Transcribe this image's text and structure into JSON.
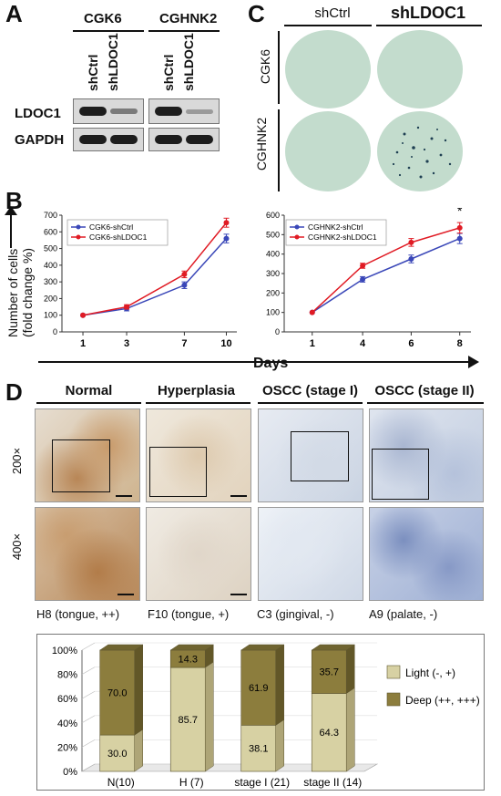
{
  "panelA": {
    "letter": "A",
    "groups": [
      "CGK6",
      "CGHNK2"
    ],
    "lanes": [
      "shCtrl",
      "shLDOC1",
      "shCtrl",
      "shLDOC1"
    ],
    "proteins": [
      "LDOC1",
      "GAPDH"
    ]
  },
  "panelC": {
    "letter": "C",
    "cols": [
      "shCtrl",
      "shLDOC1"
    ],
    "rows": [
      "CGK6",
      "CGHNK2"
    ]
  },
  "panelB": {
    "letter": "B",
    "y_axis_label_line1": "Number of cells",
    "y_axis_label_line2": "(fold change %)",
    "x_axis_label": "Days"
  },
  "panelD": {
    "letter": "D",
    "column_headers": [
      "Normal",
      "Hyperplasia",
      "OSCC (stage I)",
      "OSCC (stage II)"
    ],
    "row_labels": [
      "200×",
      "400×"
    ],
    "captions": [
      "H8 (tongue, ++)",
      "F10 (tongue, +)",
      "C3 (gingival, -)",
      "A9 (palate, -)"
    ]
  },
  "chart_data": [
    {
      "type": "line",
      "x": [
        1,
        3,
        7,
        10
      ],
      "ylim": [
        0,
        700
      ],
      "yticks": [
        0,
        100,
        200,
        300,
        400,
        500,
        600,
        700
      ],
      "series": [
        {
          "name": "CGK6-shCtrl",
          "color": "#3a47b8",
          "values": [
            100,
            140,
            280,
            560
          ]
        },
        {
          "name": "CGK6-shLDOC1",
          "color": "#e01b24",
          "values": [
            100,
            150,
            345,
            655
          ]
        }
      ],
      "annotations": [
        "*"
      ]
    },
    {
      "type": "line",
      "x": [
        1,
        4,
        6,
        8
      ],
      "ylim": [
        0,
        600
      ],
      "yticks": [
        0,
        100,
        200,
        300,
        400,
        500,
        600
      ],
      "series": [
        {
          "name": "CGHNK2-shCtrl",
          "color": "#3a47b8",
          "values": [
            100,
            270,
            375,
            480
          ]
        },
        {
          "name": "CGHNK2-shLDOC1",
          "color": "#e01b24",
          "values": [
            100,
            340,
            460,
            535
          ]
        }
      ],
      "annotations": [
        "*"
      ]
    },
    {
      "type": "bar",
      "stacked": true,
      "categories": [
        "N(10)",
        "H (7)",
        "stage I (21)",
        "stage II (14)"
      ],
      "ylim": [
        0,
        100
      ],
      "yticks": [
        "0%",
        "20%",
        "40%",
        "60%",
        "80%",
        "100%"
      ],
      "series": [
        {
          "name": "Light (-, +)",
          "color": "#d7d1a3",
          "values": [
            30.0,
            85.7,
            38.1,
            64.3
          ]
        },
        {
          "name": "Deep (++, +++)",
          "color": "#8c7d3d",
          "values": [
            70.0,
            14.3,
            61.9,
            35.7
          ]
        }
      ]
    }
  ]
}
